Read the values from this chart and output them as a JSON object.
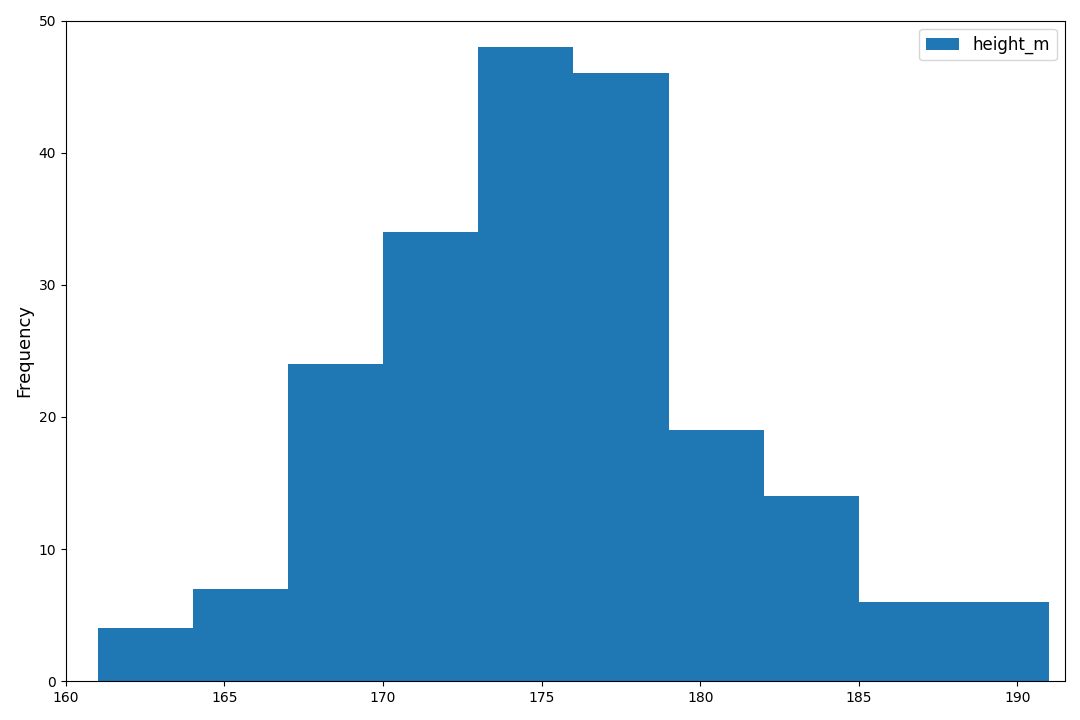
{
  "bin_edges": [
    161,
    164,
    167,
    170,
    173,
    176,
    179,
    182,
    185,
    188,
    191
  ],
  "frequencies": [
    4,
    7,
    24,
    34,
    48,
    46,
    19,
    14,
    6,
    6
  ],
  "bar_color": "#1f77b4",
  "ylabel": "Frequency",
  "ylim": [
    0,
    50
  ],
  "xlim": [
    160.0,
    191.5
  ],
  "xticks": [
    160,
    165,
    170,
    175,
    180,
    185,
    190
  ],
  "yticks": [
    0,
    10,
    20,
    30,
    40,
    50
  ],
  "legend_label": "height_m",
  "background_color": "#ffffff"
}
